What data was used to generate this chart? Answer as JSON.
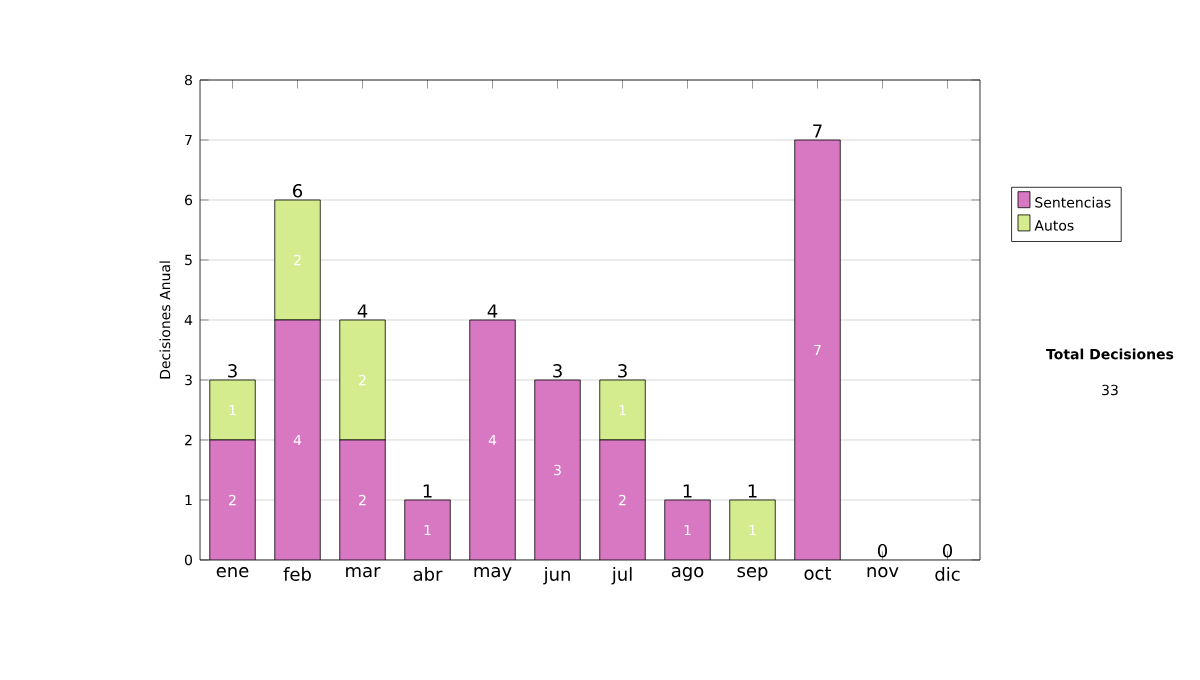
{
  "chart_data": {
    "type": "bar",
    "stacked": true,
    "ylabel": "Decisiones Anual",
    "categories": [
      "ene",
      "feb",
      "mar",
      "abr",
      "may",
      "jun",
      "jul",
      "ago",
      "sep",
      "oct",
      "nov",
      "dic"
    ],
    "series": [
      {
        "name": "Sentencias",
        "color": "#d878c3",
        "values": [
          2,
          4,
          2,
          1,
          4,
          3,
          2,
          1,
          0,
          7,
          0,
          0
        ],
        "value_labels": [
          "2",
          "4",
          "2",
          "1",
          "4",
          "3",
          "2",
          "1",
          null,
          "7",
          null,
          null
        ]
      },
      {
        "name": "Autos",
        "color": "#d4ec8e",
        "values": [
          1,
          2,
          2,
          0,
          0,
          0,
          1,
          0,
          1,
          0,
          0,
          0
        ],
        "value_labels": [
          "1",
          "2",
          "2",
          null,
          null,
          null,
          "1",
          null,
          "1",
          null,
          null,
          null
        ]
      }
    ],
    "totals": [
      "3",
      "6",
      "4",
      "1",
      "4",
      "3",
      "3",
      "1",
      "1",
      "7",
      "0",
      "0"
    ],
    "ylim": [
      0,
      8
    ],
    "yticks": [
      0,
      1,
      2,
      3,
      4,
      5,
      6,
      7,
      8
    ],
    "grid": "y",
    "legend": "right",
    "annotations": [
      "Total Decisiones",
      "33"
    ]
  }
}
